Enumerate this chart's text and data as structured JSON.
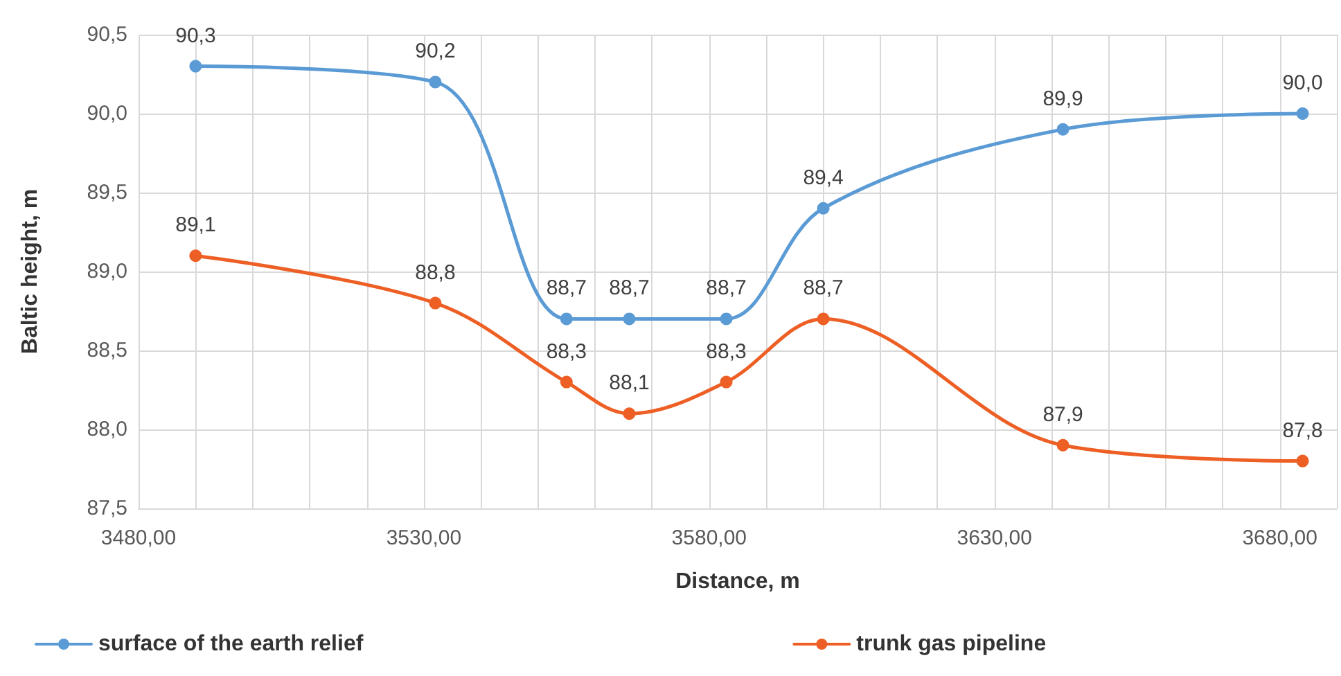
{
  "chart_data": {
    "type": "line",
    "xlabel": "Distance, m",
    "ylabel": "Baltic height, m",
    "x": [
      3490,
      3532,
      3555,
      3566,
      3583,
      3600,
      3642,
      3684
    ],
    "series": [
      {
        "name": "surface of the earth relief",
        "color": "#5b9bd5",
        "values": [
          90.3,
          90.2,
          88.7,
          88.7,
          88.7,
          89.4,
          89.9,
          90.0
        ],
        "value_labels": [
          "90,3",
          "90,2",
          "88,7",
          "88,7",
          "88,7",
          "89,4",
          "89,9",
          "90,0"
        ]
      },
      {
        "name": "trunk gas pipeline",
        "color": "#ed5f24",
        "values": [
          89.1,
          88.8,
          88.3,
          88.1,
          88.3,
          88.7,
          87.9,
          87.8
        ],
        "value_labels": [
          "89,1",
          "88,8",
          "88,3",
          "88,1",
          "88,3",
          "88,7",
          "87,9",
          "87,8"
        ]
      }
    ],
    "xlim": [
      3480,
      3690
    ],
    "xticks": [
      {
        "value": 3480,
        "label": "3480,00"
      },
      {
        "value": 3490,
        "label": null
      },
      {
        "value": 3500,
        "label": null
      },
      {
        "value": 3510,
        "label": null
      },
      {
        "value": 3520,
        "label": null
      },
      {
        "value": 3530,
        "label": "3530,00"
      },
      {
        "value": 3540,
        "label": null
      },
      {
        "value": 3550,
        "label": null
      },
      {
        "value": 3560,
        "label": null
      },
      {
        "value": 3570,
        "label": null
      },
      {
        "value": 3580,
        "label": "3580,00"
      },
      {
        "value": 3590,
        "label": null
      },
      {
        "value": 3600,
        "label": null
      },
      {
        "value": 3610,
        "label": null
      },
      {
        "value": 3620,
        "label": null
      },
      {
        "value": 3630,
        "label": "3630,00"
      },
      {
        "value": 3640,
        "label": null
      },
      {
        "value": 3650,
        "label": null
      },
      {
        "value": 3660,
        "label": null
      },
      {
        "value": 3670,
        "label": null
      },
      {
        "value": 3680,
        "label": "3680,00"
      },
      {
        "value": 3690,
        "label": null
      }
    ],
    "ylim": [
      87.5,
      90.5
    ],
    "yticks": [
      {
        "value": 87.5,
        "label": "87,5"
      },
      {
        "value": 88,
        "label": "88,0"
      },
      {
        "value": 88.5,
        "label": "88,5"
      },
      {
        "value": 89,
        "label": "89,0"
      },
      {
        "value": 89.5,
        "label": "89,5"
      },
      {
        "value": 90,
        "label": "90,0"
      },
      {
        "value": 90.5,
        "label": "90,5"
      }
    ],
    "grid": true,
    "legend": "bottom",
    "marker": "circle",
    "line_style": "solid"
  }
}
